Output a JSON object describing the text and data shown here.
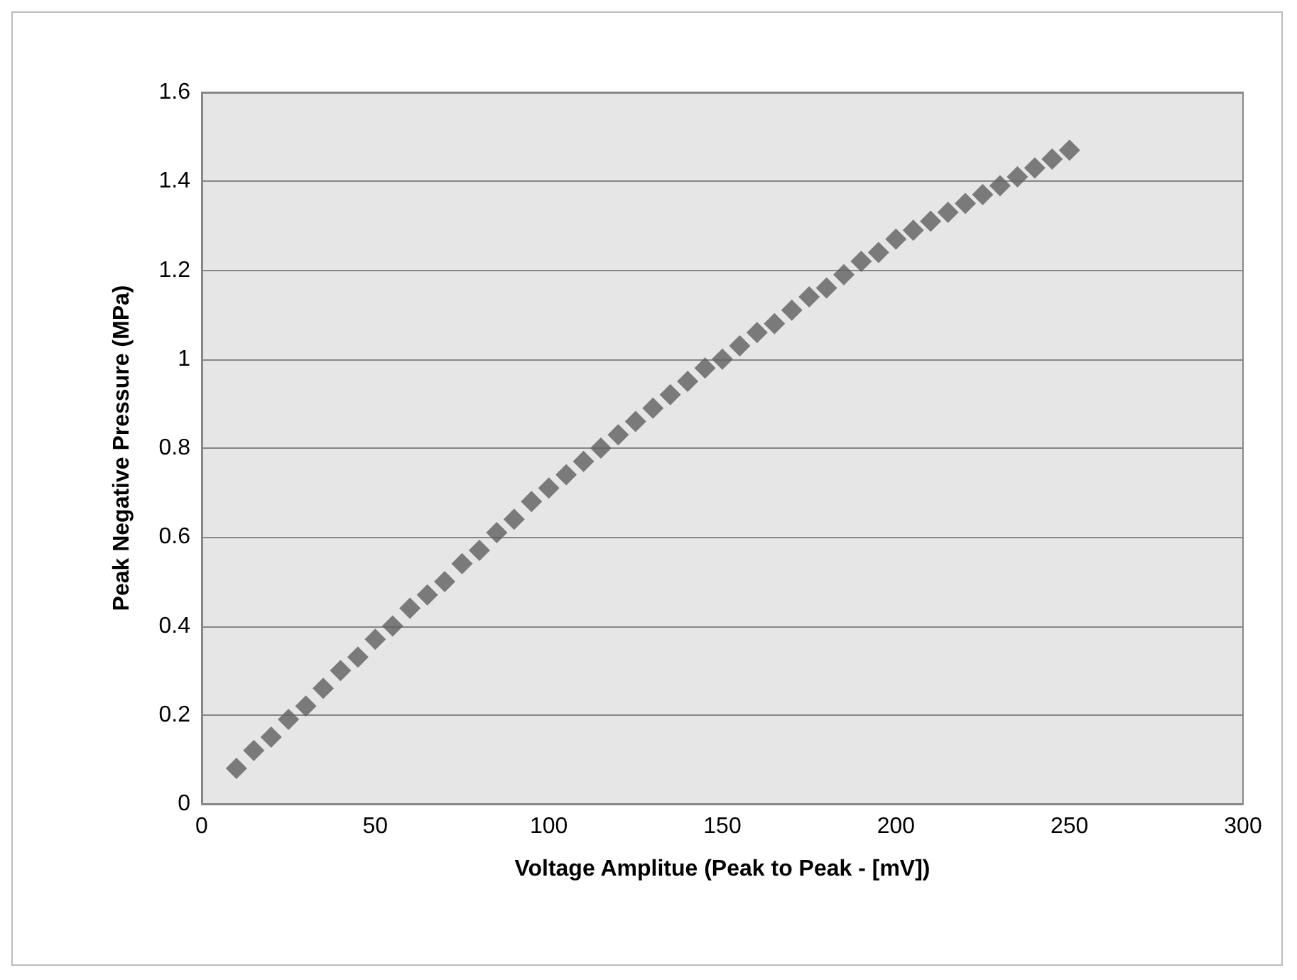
{
  "chart_data": {
    "type": "scatter",
    "xlabel": "Voltage Amplitue (Peak to Peak - [mV])",
    "ylabel": "Peak Negative Pressure (MPa)",
    "x": [
      10,
      15,
      20,
      25,
      30,
      35,
      40,
      45,
      50,
      55,
      60,
      65,
      70,
      75,
      80,
      85,
      90,
      95,
      100,
      105,
      110,
      115,
      120,
      125,
      130,
      135,
      140,
      145,
      150,
      155,
      160,
      165,
      170,
      175,
      180,
      185,
      190,
      195,
      200,
      205,
      210,
      215,
      220,
      225,
      230,
      235,
      240,
      245,
      250
    ],
    "series": [
      {
        "color": "#5f5f5f",
        "values": [
          0.08,
          0.12,
          0.15,
          0.19,
          0.22,
          0.26,
          0.3,
          0.33,
          0.37,
          0.4,
          0.44,
          0.47,
          0.5,
          0.54,
          0.57,
          0.61,
          0.64,
          0.68,
          0.71,
          0.74,
          0.77,
          0.8,
          0.83,
          0.86,
          0.89,
          0.92,
          0.95,
          0.98,
          1.0,
          1.03,
          1.06,
          1.08,
          1.11,
          1.14,
          1.16,
          1.19,
          1.22,
          1.24,
          1.27,
          1.29,
          1.31,
          1.33,
          1.35,
          1.37,
          1.39,
          1.41,
          1.43,
          1.45,
          1.47
        ]
      }
    ],
    "xlim": [
      0,
      300
    ],
    "xticks": [
      0,
      50,
      100,
      150,
      200,
      250,
      300
    ],
    "ylim": [
      0,
      1.6
    ],
    "yticks": [
      0,
      0.2,
      0.4,
      0.6,
      0.8,
      1,
      1.2,
      1.4,
      1.6
    ],
    "grid": "y",
    "marker": "diamond"
  }
}
